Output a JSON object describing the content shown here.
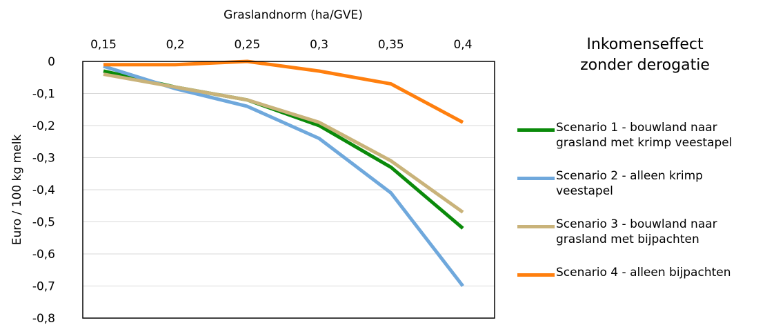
{
  "chart_data": {
    "type": "line",
    "title": "",
    "xlabel": "Graslandnorm (ha/GVE)",
    "ylabel": "Euro / 100 kg melk",
    "x": [
      0.15,
      0.2,
      0.25,
      0.3,
      0.35,
      0.4
    ],
    "x_tick_labels": [
      "0,15",
      "0,2",
      "0,25",
      "0,3",
      "0,35",
      "0,4"
    ],
    "ylim": [
      -0.8,
      0
    ],
    "y_ticks": [
      0,
      -0.1,
      -0.2,
      -0.3,
      -0.4,
      -0.5,
      -0.6,
      -0.7,
      -0.8
    ],
    "y_tick_labels": [
      "0",
      "-0,1",
      "-0,2",
      "-0,3",
      "-0,4",
      "-0,5",
      "-0,6",
      "-0,7",
      "-0,8"
    ],
    "x_axis_position": "top",
    "grid": "horizontal",
    "legend_position": "right",
    "series": [
      {
        "name": "Scenario 1 - bouwland naar grasland met krimp veestapel",
        "legend_lines": [
          "Scenario 1 - bouwland naar",
          "grasland met krimp veestapel"
        ],
        "color": "#0a8a0a",
        "values": [
          -0.03,
          -0.08,
          -0.12,
          -0.2,
          -0.33,
          -0.52
        ]
      },
      {
        "name": "Scenario 2 - alleen krimp veestapel",
        "legend_lines": [
          "Scenario 2 - alleen krimp",
          "veestapel"
        ],
        "color": "#6fa8dc",
        "values": [
          -0.015,
          -0.085,
          -0.14,
          -0.24,
          -0.41,
          -0.7
        ]
      },
      {
        "name": "Scenario 3 - bouwland naar grasland met bijpachten",
        "legend_lines": [
          "Scenario 3 - bouwland naar",
          "grasland met bijpachten"
        ],
        "color": "#c9b37a",
        "values": [
          -0.04,
          -0.08,
          -0.12,
          -0.19,
          -0.31,
          -0.47
        ]
      },
      {
        "name": "Scenario 4 - alleen bijpachten",
        "legend_lines": [
          "Scenario 4 - alleen bijpachten"
        ],
        "color": "#ff7f0e",
        "values": [
          -0.01,
          -0.01,
          0.0,
          -0.03,
          -0.07,
          -0.19
        ]
      }
    ]
  },
  "side_title_lines": [
    "Inkomenseffect",
    "zonder derogatie"
  ]
}
